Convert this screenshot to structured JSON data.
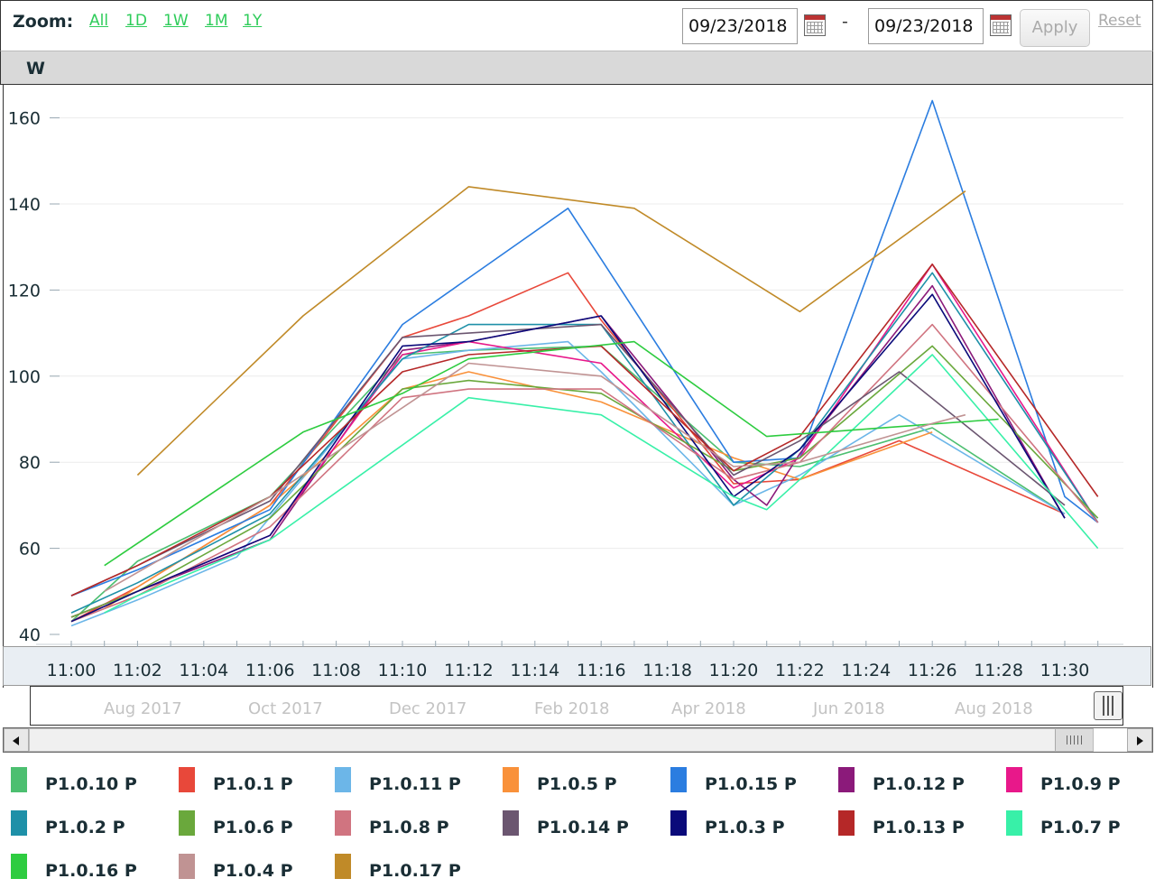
{
  "toolbar": {
    "zoom_label": "Zoom:",
    "zoom_options": [
      "All",
      "1D",
      "1W",
      "1M",
      "1Y"
    ],
    "date_from": "09/23/2018",
    "date_separator": "-",
    "date_to": "09/23/2018",
    "apply_label": "Apply",
    "reset_label": "Reset"
  },
  "unit_label": "W",
  "navigator": {
    "labels": [
      "Aug 2017",
      "Oct 2017",
      "Dec 2017",
      "Feb 2018",
      "Apr 2018",
      "Jun 2018",
      "Aug 2018"
    ]
  },
  "chart_data": {
    "type": "line",
    "xlabel": "",
    "ylabel": "W",
    "ylim": [
      40,
      165
    ],
    "yticks": [
      40,
      60,
      80,
      100,
      120,
      140,
      160
    ],
    "xlim": [
      "11:00",
      "11:31"
    ],
    "xticks": [
      "11:00",
      "11:02",
      "11:04",
      "11:06",
      "11:08",
      "11:10",
      "11:12",
      "11:14",
      "11:16",
      "11:18",
      "11:20",
      "11:22",
      "11:24",
      "11:26",
      "11:28",
      "11:30"
    ],
    "grid": "horizontal",
    "legend_position": "bottom",
    "series": [
      {
        "name": "P1.0.10 P",
        "color": "#4cbf70",
        "points": [
          [
            "11:00",
            43
          ],
          [
            "11:02",
            57
          ],
          [
            "11:06",
            72
          ],
          [
            "11:10",
            105
          ],
          [
            "11:12",
            106
          ],
          [
            "11:16",
            107
          ],
          [
            "11:20",
            80
          ],
          [
            "11:22",
            79
          ],
          [
            "11:26",
            88
          ],
          [
            "11:30",
            68
          ]
        ]
      },
      {
        "name": "P1.0.1 P",
        "color": "#e8483a",
        "points": [
          [
            "11:00",
            43
          ],
          [
            "11:02",
            51
          ],
          [
            "11:06",
            70
          ],
          [
            "11:10",
            109
          ],
          [
            "11:12",
            114
          ],
          [
            "11:15",
            124
          ],
          [
            "11:16",
            113
          ],
          [
            "11:20",
            75
          ],
          [
            "11:22",
            76
          ],
          [
            "11:25",
            85
          ],
          [
            "11:30",
            68
          ]
        ]
      },
      {
        "name": "P1.0.11 P",
        "color": "#6cb6e8",
        "points": [
          [
            "11:00",
            42
          ],
          [
            "11:02",
            48
          ],
          [
            "11:05",
            58
          ],
          [
            "11:10",
            104
          ],
          [
            "11:12",
            106
          ],
          [
            "11:15",
            108
          ],
          [
            "11:16",
            101
          ],
          [
            "11:20",
            70
          ],
          [
            "11:22",
            77
          ],
          [
            "11:25",
            91
          ],
          [
            "11:30",
            68
          ]
        ]
      },
      {
        "name": "P1.0.5 P",
        "color": "#f9913a",
        "points": [
          [
            "11:01",
            46
          ],
          [
            "11:02",
            51
          ],
          [
            "11:06",
            70
          ],
          [
            "11:10",
            97
          ],
          [
            "11:12",
            101
          ],
          [
            "11:16",
            94
          ],
          [
            "11:20",
            81
          ],
          [
            "11:22",
            76
          ],
          [
            "11:26",
            87
          ]
        ]
      },
      {
        "name": "P1.0.15 P",
        "color": "#2b7de0",
        "points": [
          [
            "11:00",
            49
          ],
          [
            "11:02",
            55
          ],
          [
            "11:06",
            69
          ],
          [
            "11:10",
            112
          ],
          [
            "11:15",
            139
          ],
          [
            "11:20",
            80
          ],
          [
            "11:22",
            81
          ],
          [
            "11:26",
            164
          ],
          [
            "11:30",
            72
          ],
          [
            "11:31",
            66
          ]
        ]
      },
      {
        "name": "P1.0.12 P",
        "color": "#8b1a7a",
        "points": [
          [
            "11:00",
            44
          ],
          [
            "11:02",
            50
          ],
          [
            "11:06",
            62
          ],
          [
            "11:10",
            106
          ],
          [
            "11:12",
            108
          ],
          [
            "11:16",
            114
          ],
          [
            "11:20",
            76
          ],
          [
            "11:21",
            70
          ],
          [
            "11:22",
            82
          ],
          [
            "11:26",
            121
          ],
          [
            "11:30",
            67
          ]
        ]
      },
      {
        "name": "P1.0.9 P",
        "color": "#e8188a",
        "points": [
          [
            "11:00",
            44
          ],
          [
            "11:02",
            50
          ],
          [
            "11:06",
            63
          ],
          [
            "11:10",
            105
          ],
          [
            "11:12",
            108
          ],
          [
            "11:16",
            103
          ],
          [
            "11:20",
            74
          ],
          [
            "11:22",
            81
          ],
          [
            "11:26",
            126
          ],
          [
            "11:31",
            66
          ]
        ]
      },
      {
        "name": "P1.0.2 P",
        "color": "#1e90a8",
        "points": [
          [
            "11:00",
            45
          ],
          [
            "11:02",
            52
          ],
          [
            "11:06",
            68
          ],
          [
            "11:10",
            104
          ],
          [
            "11:12",
            112
          ],
          [
            "11:16",
            112
          ],
          [
            "11:20",
            70
          ],
          [
            "11:22",
            83
          ],
          [
            "11:26",
            124
          ],
          [
            "11:31",
            66
          ]
        ]
      },
      {
        "name": "P1.0.6 P",
        "color": "#6aa83c",
        "points": [
          [
            "11:00",
            44
          ],
          [
            "11:02",
            50
          ],
          [
            "11:06",
            67
          ],
          [
            "11:10",
            97
          ],
          [
            "11:12",
            99
          ],
          [
            "11:16",
            96
          ],
          [
            "11:20",
            78
          ],
          [
            "11:22",
            81
          ],
          [
            "11:26",
            107
          ],
          [
            "11:31",
            67
          ]
        ]
      },
      {
        "name": "P1.0.8 P",
        "color": "#d07480",
        "points": [
          [
            "11:00",
            43
          ],
          [
            "11:02",
            49
          ],
          [
            "11:06",
            65
          ],
          [
            "11:10",
            95
          ],
          [
            "11:12",
            97
          ],
          [
            "11:16",
            97
          ],
          [
            "11:20",
            76
          ],
          [
            "11:22",
            80
          ],
          [
            "11:26",
            112
          ],
          [
            "11:31",
            66
          ]
        ]
      },
      {
        "name": "P1.0.14 P",
        "color": "#6b5670",
        "points": [
          [
            "11:00",
            49
          ],
          [
            "11:02",
            56
          ],
          [
            "11:06",
            71
          ],
          [
            "11:10",
            109
          ],
          [
            "11:12",
            110
          ],
          [
            "11:16",
            112
          ],
          [
            "11:20",
            77
          ],
          [
            "11:22",
            85
          ],
          [
            "11:25",
            101
          ],
          [
            "11:30",
            70
          ]
        ]
      },
      {
        "name": "P1.0.3 P",
        "color": "#0a0a7a",
        "points": [
          [
            "11:00",
            43
          ],
          [
            "11:02",
            50
          ],
          [
            "11:06",
            63
          ],
          [
            "11:10",
            107
          ],
          [
            "11:12",
            108
          ],
          [
            "11:16",
            114
          ],
          [
            "11:20",
            72
          ],
          [
            "11:22",
            83
          ],
          [
            "11:26",
            119
          ],
          [
            "11:30",
            67
          ]
        ]
      },
      {
        "name": "P1.0.13 P",
        "color": "#b52828",
        "points": [
          [
            "11:00",
            49
          ],
          [
            "11:02",
            56
          ],
          [
            "11:06",
            72
          ],
          [
            "11:10",
            101
          ],
          [
            "11:12",
            105
          ],
          [
            "11:16",
            107
          ],
          [
            "11:20",
            78
          ],
          [
            "11:22",
            86
          ],
          [
            "11:26",
            126
          ],
          [
            "11:31",
            72
          ]
        ]
      },
      {
        "name": "P1.0.7 P",
        "color": "#38f0a8",
        "points": [
          [
            "11:01",
            45
          ],
          [
            "11:02",
            49
          ],
          [
            "11:06",
            62
          ],
          [
            "11:12",
            95
          ],
          [
            "11:16",
            91
          ],
          [
            "11:20",
            72
          ],
          [
            "11:21",
            69
          ],
          [
            "11:22",
            76
          ],
          [
            "11:26",
            105
          ],
          [
            "11:31",
            60
          ]
        ]
      },
      {
        "name": "P1.0.16 P",
        "color": "#2ecc40",
        "points": [
          [
            "11:01",
            56
          ],
          [
            "11:07",
            87
          ],
          [
            "11:10",
            96
          ],
          [
            "11:12",
            104
          ],
          [
            "11:17",
            108
          ],
          [
            "11:21",
            86
          ],
          [
            "11:28",
            90
          ]
        ]
      },
      {
        "name": "P1.0.4 P",
        "color": "#c09393",
        "points": [
          [
            "11:01",
            50
          ],
          [
            "11:06",
            72
          ],
          [
            "11:12",
            103
          ],
          [
            "11:16",
            100
          ],
          [
            "11:20",
            79
          ],
          [
            "11:22",
            80
          ],
          [
            "11:26",
            89
          ],
          [
            "11:27",
            91
          ]
        ]
      },
      {
        "name": "P1.0.17 P",
        "color": "#c08a28",
        "points": [
          [
            "11:02",
            77
          ],
          [
            "11:07",
            114
          ],
          [
            "11:12",
            144
          ],
          [
            "11:17",
            139
          ],
          [
            "11:22",
            115
          ],
          [
            "11:27",
            143
          ]
        ]
      }
    ]
  }
}
